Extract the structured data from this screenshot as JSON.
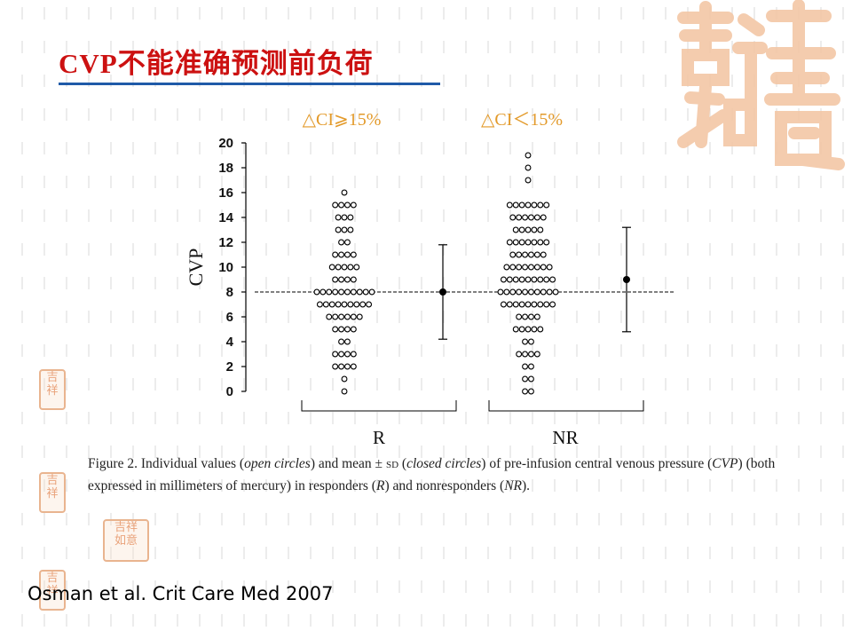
{
  "slide": {
    "title": "CVP不能准确预测前负荷",
    "citation": "Osman et al. Crit Care Med 2007",
    "colors": {
      "title": "#cc1111",
      "rule": "#1f5aa8",
      "group_labels": "#e39a2a",
      "watermark": "#f3c7a6"
    }
  },
  "figure": {
    "caption_parts": [
      {
        "t": "Figure 2. Individual values (",
        "i": false
      },
      {
        "t": "open circles",
        "i": true
      },
      {
        "t": ") and mean ± ",
        "i": false
      },
      {
        "t": "SD",
        "i": false,
        "sc": true
      },
      {
        "t": " (",
        "i": false
      },
      {
        "t": "closed circles",
        "i": true
      },
      {
        "t": ") of pre-infusion central venous pressure (",
        "i": false
      },
      {
        "t": "CVP",
        "i": true
      },
      {
        "t": ") (both expressed in millimeters of mercury) in responders (",
        "i": false
      },
      {
        "t": "R",
        "i": true
      },
      {
        "t": ") and nonresponders (",
        "i": false
      },
      {
        "t": "NR",
        "i": true
      },
      {
        "t": ").",
        "i": false
      }
    ]
  },
  "chart_data": {
    "type": "scatter",
    "ylabel": "CVP",
    "ylim": [
      0,
      20
    ],
    "yticks": [
      0,
      2,
      4,
      6,
      8,
      10,
      12,
      14,
      16,
      18,
      20
    ],
    "reference_line": 8,
    "groups": [
      {
        "label": "R",
        "top_label": "△CI⩾15%",
        "counts": [
          [
            0,
            1
          ],
          [
            1,
            1
          ],
          [
            2,
            4
          ],
          [
            3,
            4
          ],
          [
            4,
            2
          ],
          [
            5,
            4
          ],
          [
            6,
            6
          ],
          [
            7,
            9
          ],
          [
            8,
            10
          ],
          [
            9,
            4
          ],
          [
            10,
            5
          ],
          [
            11,
            4
          ],
          [
            12,
            2
          ],
          [
            13,
            3
          ],
          [
            14,
            3
          ],
          [
            15,
            4
          ],
          [
            16,
            1
          ]
        ],
        "mean": 8,
        "sd_low": 4.2,
        "sd_high": 11.8
      },
      {
        "label": "NR",
        "top_label": "△CI＜15%",
        "counts": [
          [
            0,
            2
          ],
          [
            1,
            2
          ],
          [
            2,
            2
          ],
          [
            3,
            4
          ],
          [
            4,
            2
          ],
          [
            5,
            5
          ],
          [
            6,
            4
          ],
          [
            7,
            9
          ],
          [
            8,
            10
          ],
          [
            9,
            9
          ],
          [
            10,
            8
          ],
          [
            11,
            6
          ],
          [
            12,
            7
          ],
          [
            13,
            5
          ],
          [
            14,
            6
          ],
          [
            15,
            7
          ],
          [
            17,
            1
          ],
          [
            18,
            1
          ],
          [
            19,
            1
          ]
        ],
        "mean": 9,
        "sd_low": 4.8,
        "sd_high": 13.2
      }
    ]
  }
}
